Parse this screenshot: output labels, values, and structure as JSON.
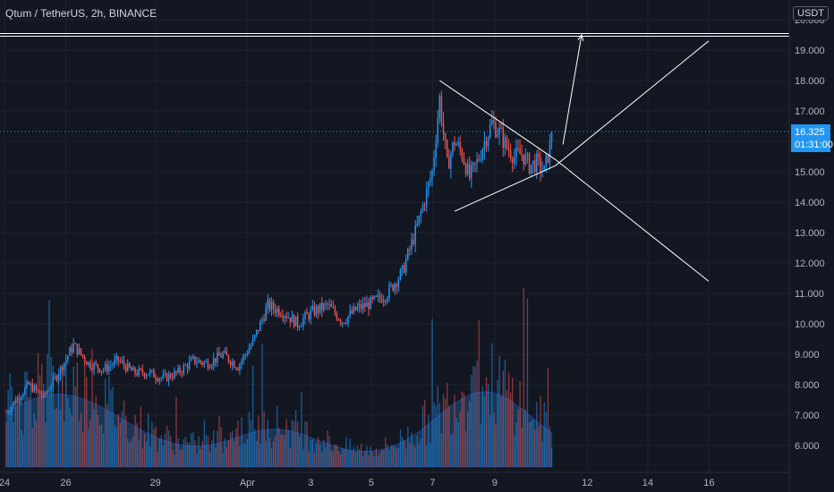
{
  "header": {
    "title": "Qtum / TetherUS, 2h, BINANCE"
  },
  "axis": {
    "currency": "USDT"
  },
  "last_price": {
    "value": "16.325",
    "countdown": "01:31:00"
  },
  "colors": {
    "background": "#131722",
    "up": "#26a69a",
    "down": "#ef5350",
    "up_candle": "#2196f3",
    "down_candle": "#ef5350",
    "volume_area": "#1e4a78",
    "drawing": "#ffffff",
    "price_line": "#2196f3"
  },
  "chart_data": {
    "type": "candlestick",
    "title": "Qtum / TetherUS, 2h, BINANCE",
    "x_ticks": [
      "24",
      "26",
      "29",
      "Apr",
      "3",
      "5",
      "7",
      "9",
      "12",
      "14",
      "16"
    ],
    "y_ticks": [
      "6.000",
      "7.000",
      "8.000",
      "9.000",
      "10.000",
      "11.000",
      "12.000",
      "13.000",
      "14.000",
      "15.000",
      "16.000",
      "17.000",
      "18.000",
      "19.000",
      "20.000"
    ],
    "ylim": [
      5.5,
      20.3
    ],
    "grid": true,
    "resistance_level": 19.5,
    "last_price": 16.325,
    "close_path": [
      [
        0,
        7.1
      ],
      [
        3,
        8.0
      ],
      [
        5,
        7.6
      ],
      [
        7,
        8.4
      ],
      [
        9,
        9.3
      ],
      [
        11,
        8.7
      ],
      [
        13,
        8.5
      ],
      [
        15,
        8.8
      ],
      [
        17,
        8.4
      ],
      [
        19,
        8.4
      ],
      [
        21,
        8.2
      ],
      [
        23,
        8.4
      ],
      [
        25,
        8.8
      ],
      [
        27,
        8.7
      ],
      [
        29,
        9.0
      ],
      [
        31,
        8.6
      ],
      [
        33,
        9.4
      ],
      [
        35,
        10.6
      ],
      [
        37,
        10.4
      ],
      [
        39,
        10.0
      ],
      [
        41,
        10.4
      ],
      [
        43,
        10.6
      ],
      [
        45,
        10.1
      ],
      [
        47,
        10.5
      ],
      [
        49,
        10.7
      ],
      [
        51,
        11.0
      ],
      [
        53,
        11.7
      ],
      [
        55,
        13.2
      ],
      [
        57,
        15.0
      ],
      [
        58,
        17.4
      ],
      [
        59,
        15.2
      ],
      [
        60,
        16.0
      ],
      [
        61,
        15.6
      ],
      [
        62,
        14.8
      ],
      [
        63,
        15.3
      ],
      [
        64,
        16.0
      ],
      [
        65,
        16.6
      ],
      [
        66,
        16.3
      ],
      [
        67,
        15.8
      ],
      [
        68,
        15.5
      ],
      [
        69,
        15.6
      ],
      [
        70,
        15.2
      ],
      [
        71,
        15.3
      ],
      [
        72,
        15.0
      ],
      [
        73,
        16.1
      ]
    ],
    "volume_scale": 1,
    "triangle": {
      "upper": [
        [
          58.0,
          18.0
        ],
        [
          73.5,
          15.4
        ],
        [
          94.0,
          11.4
        ]
      ],
      "lower": [
        [
          60.0,
          13.7
        ],
        [
          73.5,
          15.2
        ],
        [
          94.0,
          19.3
        ]
      ]
    },
    "projection": [
      [
        74.5,
        15.9
      ],
      [
        77.0,
        19.5
      ]
    ]
  }
}
